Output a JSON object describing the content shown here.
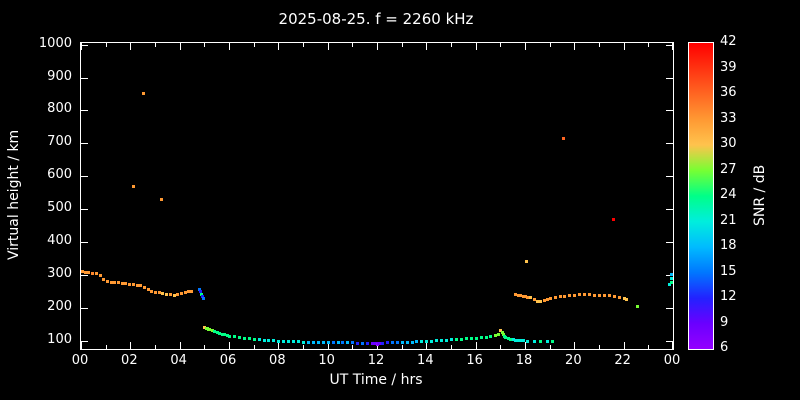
{
  "title": "2025-08-25. f = 2260 kHz",
  "colors": {
    "background": "#000000",
    "foreground": "#ffffff"
  },
  "chart_data": {
    "type": "scatter",
    "title": "2025-08-25. f = 2260 kHz",
    "xlabel": "UT Time / hrs",
    "ylabel": "Virtual height / km",
    "colorbar_label": "SNR / dB",
    "xlim": [
      0,
      24
    ],
    "ylim": [
      75,
      1005
    ],
    "grid": false,
    "x_ticks": [
      {
        "v": 0,
        "label": "00"
      },
      {
        "v": 2,
        "label": "02"
      },
      {
        "v": 4,
        "label": "04"
      },
      {
        "v": 6,
        "label": "06"
      },
      {
        "v": 8,
        "label": "08"
      },
      {
        "v": 10,
        "label": "10"
      },
      {
        "v": 12,
        "label": "12"
      },
      {
        "v": 14,
        "label": "14"
      },
      {
        "v": 16,
        "label": "16"
      },
      {
        "v": 18,
        "label": "18"
      },
      {
        "v": 20,
        "label": "20"
      },
      {
        "v": 22,
        "label": "22"
      },
      {
        "v": 24,
        "label": "00"
      }
    ],
    "x_minor_step": 1,
    "y_ticks": [
      100,
      200,
      300,
      400,
      500,
      600,
      700,
      800,
      900,
      1000
    ],
    "colorbar": {
      "min": 6,
      "max": 42,
      "ticks": [
        6,
        9,
        12,
        15,
        18,
        21,
        24,
        27,
        30,
        33,
        36,
        39,
        42
      ],
      "stops": [
        {
          "v": 6,
          "c": "#9400ff"
        },
        {
          "v": 9,
          "c": "#6a00ff"
        },
        {
          "v": 12,
          "c": "#2222ff"
        },
        {
          "v": 15,
          "c": "#0077ff"
        },
        {
          "v": 18,
          "c": "#00bbff"
        },
        {
          "v": 21,
          "c": "#00eedd"
        },
        {
          "v": 24,
          "c": "#00ff88"
        },
        {
          "v": 27,
          "c": "#77ff33"
        },
        {
          "v": 30,
          "c": "#ffc34d"
        },
        {
          "v": 33,
          "c": "#ff9933"
        },
        {
          "v": 36,
          "c": "#ff6622"
        },
        {
          "v": 39,
          "c": "#ff3311"
        },
        {
          "v": 42,
          "c": "#ff0000"
        }
      ]
    },
    "points_format": [
      "time_hrs",
      "height_km",
      "snr_db"
    ],
    "points": [
      [
        0.0,
        311,
        33
      ],
      [
        0.15,
        310,
        33
      ],
      [
        0.3,
        309,
        33
      ],
      [
        0.45,
        307,
        34
      ],
      [
        0.6,
        305,
        33
      ],
      [
        0.75,
        301,
        33
      ],
      [
        0.9,
        287,
        33
      ],
      [
        1.05,
        282,
        33
      ],
      [
        1.2,
        280,
        33
      ],
      [
        1.35,
        279,
        33
      ],
      [
        1.5,
        278,
        33
      ],
      [
        1.65,
        277,
        33
      ],
      [
        1.8,
        276,
        33
      ],
      [
        1.95,
        274,
        33
      ],
      [
        2.1,
        272,
        33
      ],
      [
        2.25,
        270,
        33
      ],
      [
        2.4,
        268,
        33
      ],
      [
        2.55,
        264,
        33
      ],
      [
        2.7,
        258,
        33
      ],
      [
        2.85,
        252,
        33
      ],
      [
        3.0,
        249,
        33
      ],
      [
        3.15,
        247,
        33
      ],
      [
        3.3,
        245,
        30
      ],
      [
        3.45,
        243,
        30
      ],
      [
        3.6,
        241,
        33
      ],
      [
        3.75,
        240,
        30
      ],
      [
        3.9,
        242,
        33
      ],
      [
        4.05,
        245,
        33
      ],
      [
        4.2,
        247,
        33
      ],
      [
        4.35,
        250,
        33
      ],
      [
        4.45,
        252,
        33
      ],
      [
        2.1,
        570,
        33
      ],
      [
        2.5,
        852,
        33
      ],
      [
        3.25,
        532,
        33
      ],
      [
        4.8,
        257,
        15
      ],
      [
        4.83,
        250,
        12
      ],
      [
        4.87,
        243,
        24
      ],
      [
        4.9,
        237,
        12
      ],
      [
        4.93,
        231,
        15
      ],
      [
        5.0,
        142,
        30
      ],
      [
        5.05,
        140,
        27
      ],
      [
        5.1,
        138,
        27
      ],
      [
        5.15,
        137,
        27
      ],
      [
        5.2,
        136,
        27
      ],
      [
        5.3,
        133,
        27
      ],
      [
        5.4,
        130,
        24
      ],
      [
        5.5,
        127,
        24
      ],
      [
        5.6,
        124,
        24
      ],
      [
        5.7,
        122,
        24
      ],
      [
        5.8,
        120,
        24
      ],
      [
        5.9,
        118,
        24
      ],
      [
        6.0,
        116,
        24
      ],
      [
        6.2,
        113,
        24
      ],
      [
        6.4,
        111,
        24
      ],
      [
        6.6,
        109,
        24
      ],
      [
        6.8,
        107,
        24
      ],
      [
        7.0,
        105,
        24
      ],
      [
        7.2,
        104,
        21
      ],
      [
        7.4,
        103,
        21
      ],
      [
        7.6,
        102,
        21
      ],
      [
        7.8,
        101,
        21
      ],
      [
        8.0,
        100,
        21
      ],
      [
        8.2,
        99,
        21
      ],
      [
        8.4,
        99,
        21
      ],
      [
        8.6,
        98,
        21
      ],
      [
        8.8,
        98,
        21
      ],
      [
        9.0,
        97,
        21
      ],
      [
        9.2,
        97,
        18
      ],
      [
        9.4,
        97,
        18
      ],
      [
        9.6,
        96,
        18
      ],
      [
        9.8,
        96,
        18
      ],
      [
        10.0,
        96,
        18
      ],
      [
        10.2,
        96,
        15
      ],
      [
        10.4,
        95,
        18
      ],
      [
        10.6,
        95,
        15
      ],
      [
        10.8,
        95,
        18
      ],
      [
        11.0,
        95,
        15
      ],
      [
        11.2,
        94,
        12
      ],
      [
        11.4,
        94,
        15
      ],
      [
        11.6,
        94,
        12
      ],
      [
        11.8,
        93,
        9
      ],
      [
        11.9,
        92,
        9
      ],
      [
        12.0,
        91,
        6
      ],
      [
        12.05,
        93,
        9
      ],
      [
        12.1,
        94,
        9
      ],
      [
        12.2,
        94,
        12
      ],
      [
        12.4,
        95,
        12
      ],
      [
        12.6,
        95,
        15
      ],
      [
        12.8,
        96,
        15
      ],
      [
        13.0,
        96,
        18
      ],
      [
        13.2,
        97,
        18
      ],
      [
        13.4,
        97,
        18
      ],
      [
        13.6,
        98,
        18
      ],
      [
        13.8,
        98,
        21
      ],
      [
        14.0,
        99,
        21
      ],
      [
        14.2,
        100,
        21
      ],
      [
        14.4,
        101,
        21
      ],
      [
        14.6,
        102,
        21
      ],
      [
        14.8,
        103,
        21
      ],
      [
        15.0,
        104,
        21
      ],
      [
        15.2,
        105,
        24
      ],
      [
        15.4,
        106,
        24
      ],
      [
        15.6,
        107,
        24
      ],
      [
        15.8,
        108,
        24
      ],
      [
        16.0,
        109,
        24
      ],
      [
        16.2,
        110,
        24
      ],
      [
        16.4,
        112,
        24
      ],
      [
        16.6,
        114,
        24
      ],
      [
        16.8,
        118,
        27
      ],
      [
        16.9,
        122,
        27
      ],
      [
        17.0,
        132,
        30
      ],
      [
        17.05,
        128,
        27
      ],
      [
        17.1,
        122,
        27
      ],
      [
        17.15,
        116,
        24
      ],
      [
        17.2,
        112,
        24
      ],
      [
        17.3,
        108,
        24
      ],
      [
        17.4,
        106,
        24
      ],
      [
        17.5,
        104,
        21
      ],
      [
        17.6,
        103,
        21
      ],
      [
        17.7,
        102,
        21
      ],
      [
        17.8,
        101,
        21
      ],
      [
        17.9,
        101,
        21
      ],
      [
        18.1,
        100,
        21
      ],
      [
        18.35,
        99,
        21
      ],
      [
        18.6,
        99,
        24
      ],
      [
        18.9,
        98,
        21
      ],
      [
        19.1,
        98,
        24
      ],
      [
        17.6,
        243,
        33
      ],
      [
        17.7,
        240,
        33
      ],
      [
        17.8,
        238,
        33
      ],
      [
        17.9,
        236,
        33
      ],
      [
        18.0,
        235,
        33
      ],
      [
        18.1,
        233,
        33
      ],
      [
        18.2,
        232,
        30
      ],
      [
        18.35,
        228,
        33
      ],
      [
        18.5,
        222,
        30
      ],
      [
        18.6,
        220,
        30
      ],
      [
        18.75,
        225,
        33
      ],
      [
        18.9,
        228,
        33
      ],
      [
        19.0,
        230,
        33
      ],
      [
        19.2,
        233,
        33
      ],
      [
        19.4,
        236,
        33
      ],
      [
        19.6,
        237,
        33
      ],
      [
        19.8,
        238,
        33
      ],
      [
        20.0,
        240,
        33
      ],
      [
        20.2,
        241,
        33
      ],
      [
        20.4,
        242,
        33
      ],
      [
        20.6,
        241,
        33
      ],
      [
        20.8,
        240,
        33
      ],
      [
        21.0,
        239,
        33
      ],
      [
        21.2,
        240,
        33
      ],
      [
        21.4,
        238,
        33
      ],
      [
        21.6,
        236,
        33
      ],
      [
        21.8,
        233,
        33
      ],
      [
        22.0,
        230,
        30
      ],
      [
        22.1,
        228,
        30
      ],
      [
        18.05,
        342,
        30
      ],
      [
        19.55,
        716,
        36
      ],
      [
        21.55,
        470,
        42
      ],
      [
        22.55,
        206,
        27
      ],
      [
        23.85,
        272,
        21
      ],
      [
        23.92,
        280,
        24
      ],
      [
        23.95,
        303,
        18
      ],
      [
        24.0,
        290,
        21
      ]
    ]
  }
}
